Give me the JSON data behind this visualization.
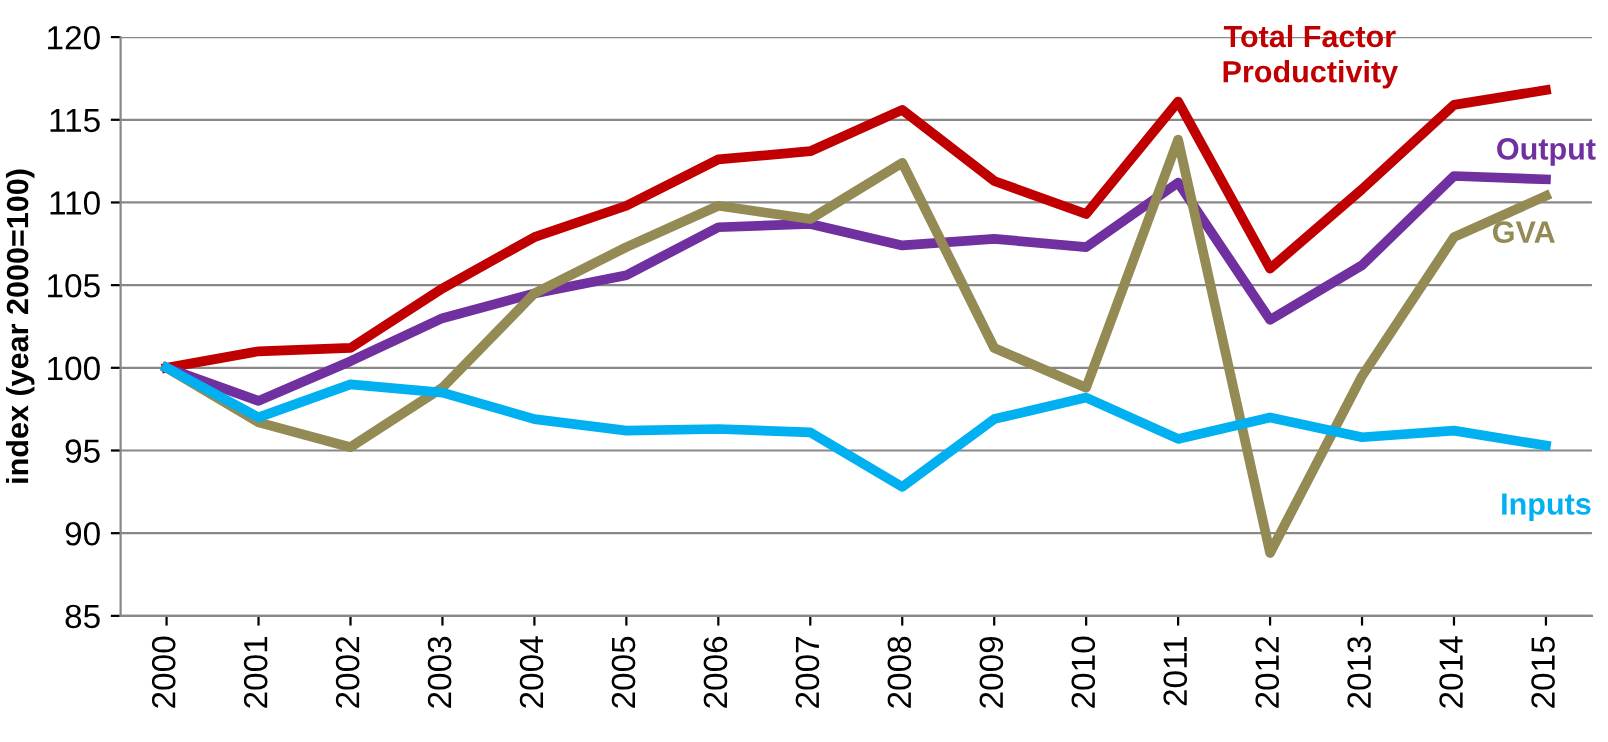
{
  "chart_data": {
    "type": "line",
    "ylabel": "index (year 2000=100)",
    "categories": [
      "2000",
      "2001",
      "2002",
      "2003",
      "2004",
      "2005",
      "2006",
      "2007",
      "2008",
      "2009",
      "2010",
      "2011",
      "2012",
      "2013",
      "2014",
      "2015"
    ],
    "series": [
      {
        "name": "Total Factor Productivity",
        "color": "#c00000",
        "values": [
          100,
          101,
          101.2,
          104.8,
          107.9,
          109.8,
          112.6,
          113.1,
          115.6,
          111.3,
          109.3,
          116.1,
          106,
          110.8,
          115.9,
          116.8
        ]
      },
      {
        "name": "Output",
        "color": "#7030a0",
        "values": [
          100,
          98,
          100.4,
          103,
          104.5,
          105.6,
          108.5,
          108.7,
          107.4,
          107.8,
          107.3,
          111.2,
          102.9,
          106.2,
          111.6,
          111.4
        ]
      },
      {
        "name": "GVA",
        "color": "#948a54",
        "values": [
          100,
          96.7,
          95.2,
          98.8,
          104.5,
          107.3,
          109.8,
          109,
          112.4,
          101.2,
          98.8,
          113.8,
          88.8,
          99.5,
          107.9,
          110.4
        ]
      },
      {
        "name": "Inputs",
        "color": "#00b0f0",
        "values": [
          100,
          97,
          99,
          98.5,
          96.9,
          96.2,
          96.3,
          96.1,
          92.8,
          96.9,
          98.2,
          95.7,
          97,
          95.8,
          96.2,
          95.3
        ]
      }
    ],
    "ylim": [
      85,
      120
    ],
    "yticks": [
      85,
      90,
      95,
      100,
      105,
      110,
      115,
      120
    ],
    "grid": "y",
    "legend": false,
    "marker": "none",
    "line_style": "solid"
  }
}
